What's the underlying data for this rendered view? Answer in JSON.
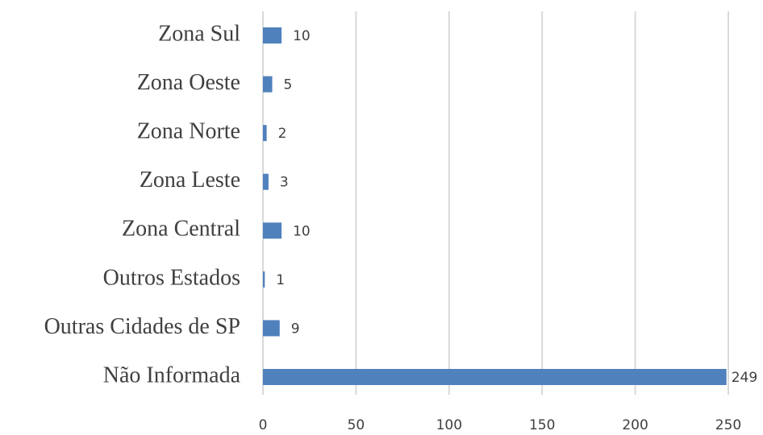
{
  "chart_data": {
    "type": "barh",
    "categories": [
      "Zona Sul",
      "Zona Oeste",
      "Zona Norte",
      "Zona Leste",
      "Zona Central",
      "Outros Estados",
      "Outras Cidades de SP",
      "Não Informada"
    ],
    "values": [
      10,
      5,
      2,
      3,
      10,
      1,
      9,
      249
    ],
    "color": "#4f81bd",
    "xlim": [
      0,
      250
    ],
    "xticks": [
      0,
      50,
      100,
      150,
      200,
      250
    ],
    "grid": true
  }
}
